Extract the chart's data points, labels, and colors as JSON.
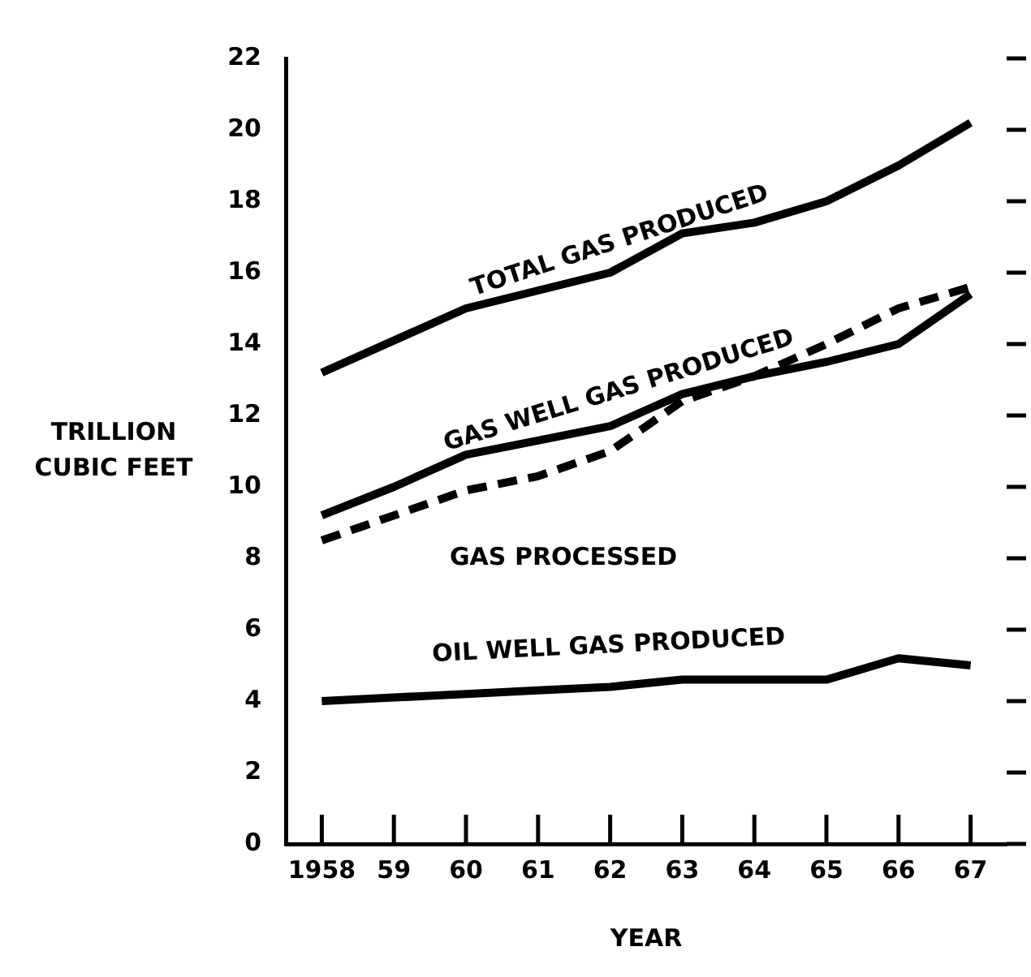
{
  "chart_data": {
    "type": "line",
    "xlabel": "YEAR",
    "ylabel": "TRILLION CUBIC FEET",
    "categories": [
      "1958",
      "59",
      "60",
      "61",
      "62",
      "63",
      "64",
      "65",
      "66",
      "67"
    ],
    "series": [
      {
        "name": "TOTAL GAS PRODUCED",
        "color": "#000000",
        "line_style": "solid",
        "values": [
          13.2,
          14.1,
          15.0,
          15.5,
          16.0,
          17.1,
          17.4,
          18.0,
          19.0,
          20.2
        ]
      },
      {
        "name": "GAS WELL GAS PRODUCED",
        "color": "#000000",
        "line_style": "solid",
        "values": [
          9.2,
          10.0,
          10.9,
          11.3,
          11.7,
          12.6,
          13.1,
          13.5,
          14.0,
          15.4
        ]
      },
      {
        "name": "GAS PROCESSED",
        "color": "#000000",
        "line_style": "dashed",
        "values": [
          8.5,
          9.2,
          9.9,
          10.3,
          11.0,
          12.4,
          13.1,
          14.0,
          15.0,
          15.6
        ]
      },
      {
        "name": "OIL WELL GAS PRODUCED",
        "color": "#000000",
        "line_style": "solid",
        "values": [
          4.0,
          4.1,
          4.2,
          4.3,
          4.4,
          4.6,
          4.6,
          4.6,
          5.2,
          5.0
        ]
      }
    ],
    "ylim": [
      0,
      22
    ],
    "yticks": [
      0,
      2,
      4,
      6,
      8,
      10,
      12,
      14,
      16,
      18,
      20,
      22
    ],
    "grid": false,
    "legend": false,
    "marker": "none"
  }
}
